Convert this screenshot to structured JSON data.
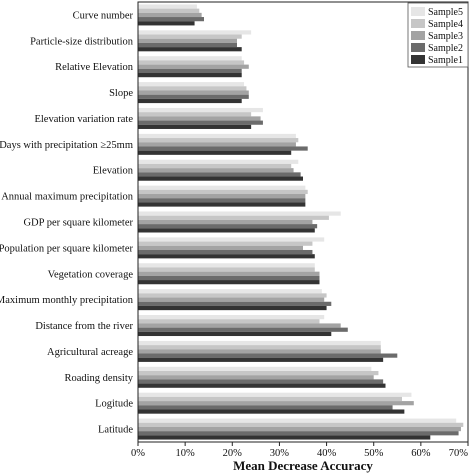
{
  "chart_data": {
    "type": "bar",
    "orientation": "horizontal",
    "xlabel": "Mean Decrease Accuracy",
    "xlim": [
      0,
      70
    ],
    "xticks": [
      "0%",
      "10%",
      "20%",
      "30%",
      "40%",
      "50%",
      "60%",
      "70%"
    ],
    "legend_position": "top-right",
    "categories": [
      "Curve number",
      "Particle-size distribution",
      "Relative Elevation",
      "Slope",
      "Elevation variation rate",
      "Days with precipitation ≥25mm",
      "Elevation",
      "Annual maximum precipitation",
      "GDP per square kilometer",
      "Population per square kilometer",
      "Vegetation coverage",
      "Maximum monthly precipitation",
      "Distance from the river",
      "Agricultural acreage",
      "Roading density",
      "Logitude",
      "Latitude"
    ],
    "series": [
      {
        "name": "Sample5",
        "color": "#e6e6e6",
        "values": [
          12.5,
          24,
          22,
          22.5,
          26.5,
          33.5,
          34,
          35.5,
          43,
          39.5,
          37.5,
          39,
          39.5,
          51.5,
          49.5,
          58,
          67.5
        ]
      },
      {
        "name": "Sample4",
        "color": "#c6c6c6",
        "values": [
          13,
          22,
          22.5,
          23,
          24,
          34,
          32.5,
          36,
          40.5,
          37,
          37.5,
          40,
          38.5,
          51.5,
          51,
          56,
          69
        ]
      },
      {
        "name": "Sample3",
        "color": "#a3a3a3",
        "values": [
          13.5,
          21,
          23.5,
          23.5,
          26,
          33.5,
          33,
          35.5,
          37,
          35,
          38.5,
          39.5,
          43,
          51.5,
          50,
          58.5,
          68.5
        ]
      },
      {
        "name": "Sample2",
        "color": "#6b6b6b",
        "values": [
          14,
          21,
          22,
          23.5,
          26.5,
          36,
          34.5,
          35.5,
          38,
          37,
          38.5,
          41,
          44.5,
          55,
          52,
          54,
          68
        ]
      },
      {
        "name": "Sample1",
        "color": "#333333",
        "values": [
          12,
          22,
          22,
          22,
          24,
          32.5,
          35,
          35.5,
          37.5,
          37.5,
          38.5,
          40,
          41,
          52,
          52.5,
          56.5,
          62
        ]
      }
    ]
  }
}
